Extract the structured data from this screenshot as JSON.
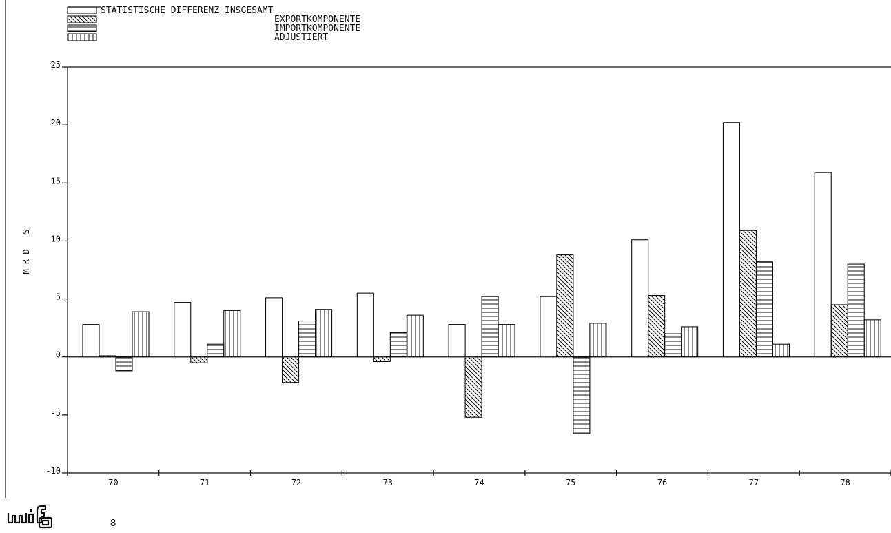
{
  "page_number": "8",
  "logo_text": "wifo",
  "chart_data": {
    "type": "bar",
    "ylabel": "M R D   S",
    "ylim": [
      -10,
      25
    ],
    "yticks": [
      -10,
      -5,
      0,
      5,
      10,
      15,
      20,
      25
    ],
    "ytick_labels": [
      "-10",
      "-5",
      "0",
      "5",
      "10",
      "15",
      "20",
      "25"
    ],
    "categories": [
      "70",
      "71",
      "72",
      "73",
      "74",
      "75",
      "76",
      "77",
      "78"
    ],
    "grid": false,
    "legend_position": "top-left",
    "series": [
      {
        "name": "STATISTISCHE DIFFERENZ INSGESAMT",
        "pattern": "blank",
        "values": [
          2.8,
          4.7,
          5.1,
          5.5,
          2.8,
          5.2,
          10.1,
          20.2,
          15.9
        ]
      },
      {
        "name": "EXPORTKOMPONENTE",
        "pattern": "diagonal",
        "values": [
          0.1,
          -0.5,
          -2.2,
          -0.4,
          -5.2,
          8.8,
          5.3,
          10.9,
          4.5
        ]
      },
      {
        "name": "IMPORTKOMPONENTE",
        "pattern": "horizontal",
        "values": [
          -1.2,
          1.1,
          3.1,
          2.1,
          5.2,
          -6.6,
          2.0,
          8.2,
          8.0
        ]
      },
      {
        "name": "ADJUSTIERT",
        "pattern": "vertical",
        "values": [
          3.9,
          4.0,
          4.1,
          3.6,
          2.8,
          2.9,
          2.6,
          1.1,
          3.2
        ]
      }
    ]
  }
}
